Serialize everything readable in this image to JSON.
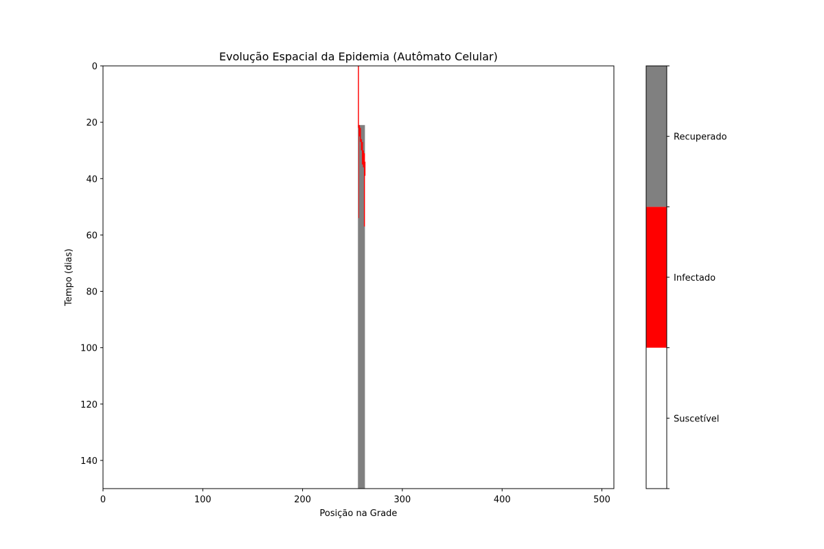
{
  "chart_data": {
    "type": "heatmap",
    "title": "Evolução Espacial da Epidemia (Autômato Celular)",
    "xlabel": "Posição na Grade",
    "ylabel": "Tempo (dias)",
    "xlim": [
      0,
      512
    ],
    "ylim": [
      150,
      0
    ],
    "y_inverted": true,
    "xticks": [
      0,
      100,
      200,
      300,
      400,
      500
    ],
    "yticks": [
      0,
      20,
      40,
      60,
      80,
      100,
      120,
      140
    ],
    "grid": false,
    "states": [
      {
        "value": 0,
        "name": "Suscetível",
        "color": "#ffffff"
      },
      {
        "value": 1,
        "name": "Infectado",
        "color": "#ff0000"
      },
      {
        "value": 2,
        "name": "Recuperado",
        "color": "#808080"
      }
    ],
    "background_state": "Suscetível",
    "cells": [
      {
        "state": "Recuperado",
        "x0": 255.5,
        "x1": 262.5,
        "t0": 21,
        "t1": 150
      },
      {
        "state": "Infectado",
        "x0": 255.5,
        "x1": 256.5,
        "t0": 0,
        "t1": 22
      },
      {
        "state": "Infectado",
        "x0": 256.1,
        "x1": 256.5,
        "t0": 22,
        "t1": 54
      },
      {
        "state": "Infectado",
        "x0": 256.5,
        "x1": 257.5,
        "t0": 21,
        "t1": 25
      },
      {
        "state": "Infectado",
        "x0": 257.5,
        "x1": 258.5,
        "t0": 22,
        "t1": 27
      },
      {
        "state": "Infectado",
        "x0": 258.5,
        "x1": 259.5,
        "t0": 26,
        "t1": 30
      },
      {
        "state": "Infectado",
        "x0": 259.5,
        "x1": 260.5,
        "t0": 27,
        "t1": 35
      },
      {
        "state": "Infectado",
        "x0": 260.5,
        "x1": 261.5,
        "t0": 30,
        "t1": 36
      },
      {
        "state": "Infectado",
        "x0": 261.5,
        "x1": 262.5,
        "t0": 31,
        "t1": 57
      },
      {
        "state": "Infectado",
        "x0": 262.5,
        "x1": 263.0,
        "t0": 34,
        "t1": 39
      }
    ],
    "colorbar": {
      "labels": [
        "Suscetível",
        "Infectado",
        "Recuperado"
      ]
    }
  }
}
